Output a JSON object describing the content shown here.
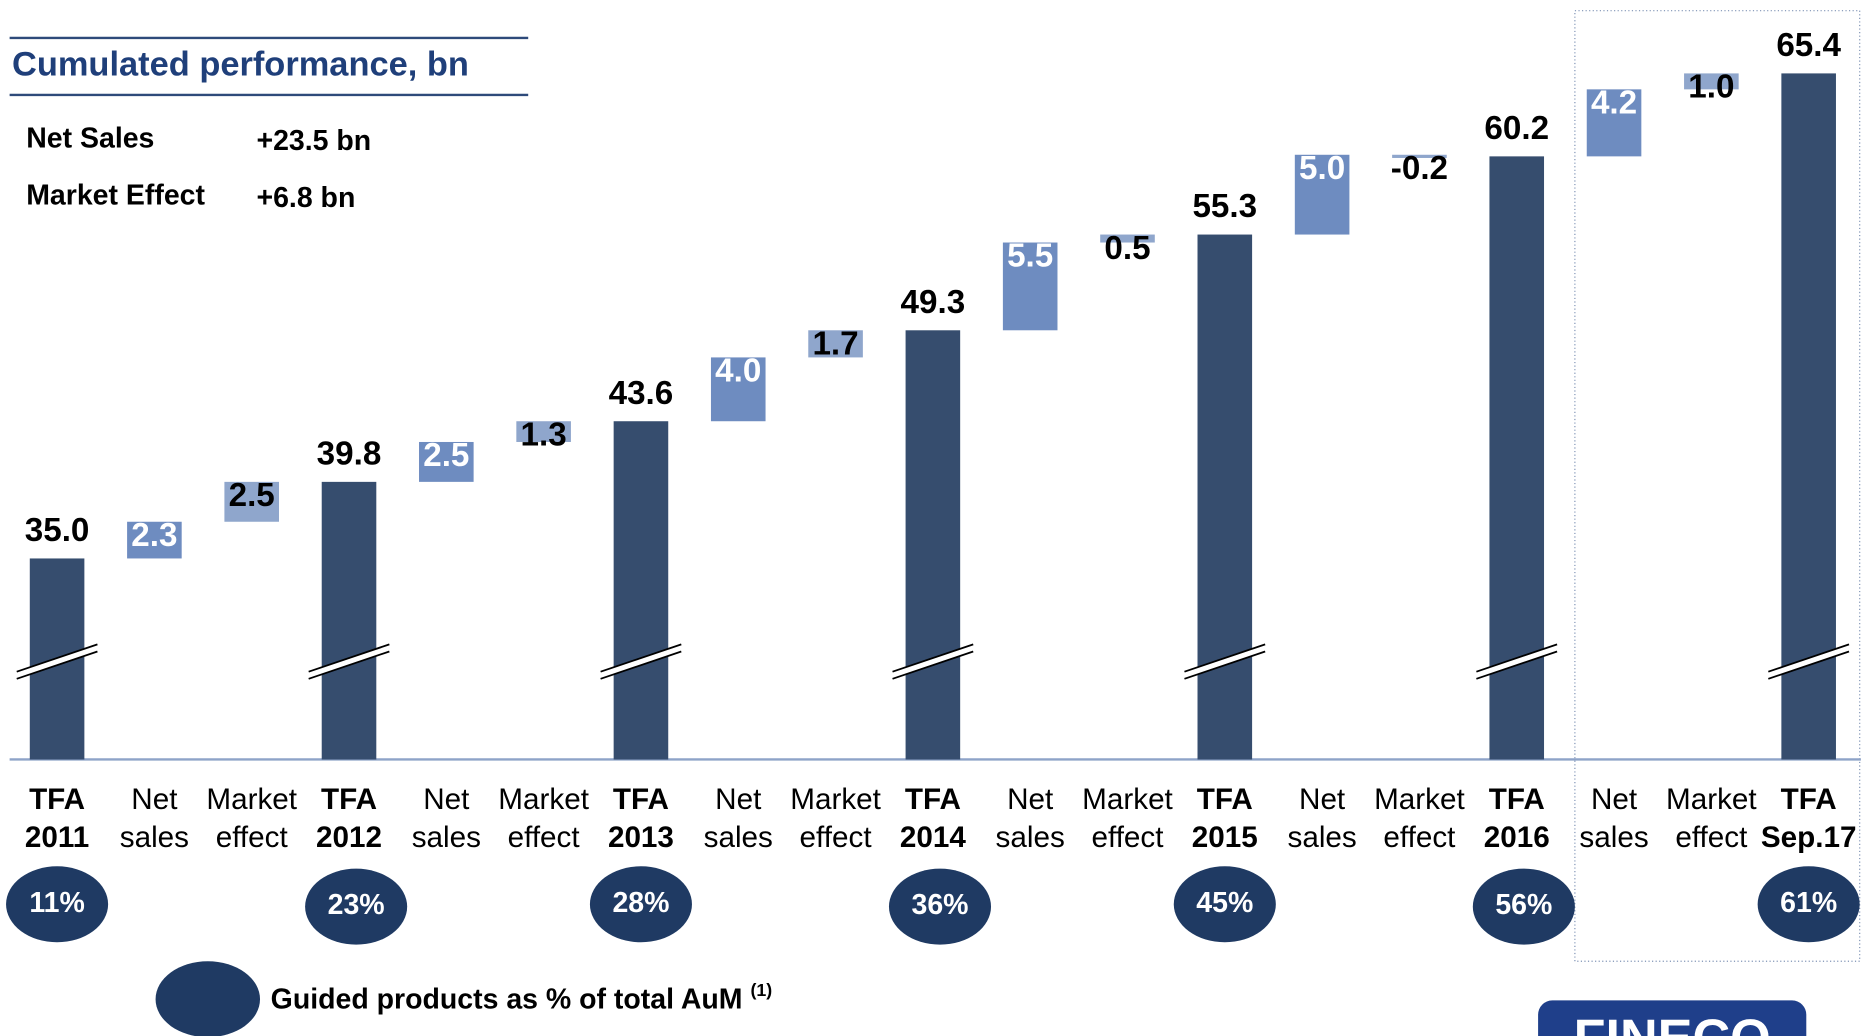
{
  "chart_data": {
    "type": "waterfall",
    "title": "Cumulated performance, bn",
    "summary": [
      {
        "label": "Net Sales",
        "value": "+23.5 bn"
      },
      {
        "label": "Market Effect",
        "value": "+6.8 bn"
      }
    ],
    "categories": [
      [
        "TFA",
        "2011"
      ],
      [
        "Net",
        "sales"
      ],
      [
        "Market",
        "effect"
      ],
      [
        "TFA",
        "2012"
      ],
      [
        "Net",
        "sales"
      ],
      [
        "Market",
        "effect"
      ],
      [
        "TFA",
        "2013"
      ],
      [
        "Net",
        "sales"
      ],
      [
        "Market",
        "effect"
      ],
      [
        "TFA",
        "2014"
      ],
      [
        "Net",
        "sales"
      ],
      [
        "Market",
        "effect"
      ],
      [
        "TFA",
        "2015"
      ],
      [
        "Net",
        "sales"
      ],
      [
        "Market",
        "effect"
      ],
      [
        "TFA",
        "2016"
      ],
      [
        "Net",
        "sales"
      ],
      [
        "Market",
        "effect"
      ],
      [
        "TFA",
        "Sep.17"
      ]
    ],
    "measure": [
      "absolute",
      "relative",
      "relative",
      "absolute",
      "relative",
      "relative",
      "absolute",
      "relative",
      "relative",
      "absolute",
      "relative",
      "relative",
      "absolute",
      "relative",
      "relative",
      "absolute",
      "relative",
      "relative",
      "absolute"
    ],
    "values": [
      35.0,
      2.3,
      2.5,
      39.8,
      2.5,
      1.3,
      43.6,
      4.0,
      1.7,
      49.3,
      5.5,
      0.5,
      55.3,
      5.0,
      -0.2,
      60.2,
      4.2,
      1.0,
      65.4
    ],
    "value_labels": [
      "35.0",
      "2.3",
      "2.5",
      "39.8",
      "2.5",
      "1.3",
      "43.6",
      "4.0",
      "1.7",
      "49.3",
      "5.5",
      "0.5",
      "55.3",
      "5.0",
      "-0.2",
      "60.2",
      "4.2",
      "1.0",
      "65.4"
    ],
    "colors": [
      "#364d6e",
      "#6e8cc0",
      "#8fa6cc",
      "#364d6e",
      "#6e8cc0",
      "#8fa6cc",
      "#364d6e",
      "#6e8cc0",
      "#8fa6cc",
      "#364d6e",
      "#6e8cc0",
      "#8fa6cc",
      "#364d6e",
      "#6e8cc0",
      "#8fa6cc",
      "#364d6e",
      "#6e8cc0",
      "#8fa6cc",
      "#364d6e"
    ],
    "label_colors": [
      "#000",
      "#fff",
      "#000",
      "#000",
      "#fff",
      "#000",
      "#000",
      "#fff",
      "#000",
      "#000",
      "#fff",
      "#000",
      "#000",
      "#fff",
      "#000",
      "#000",
      "#fff",
      "#000",
      "#000"
    ],
    "ylim": [
      22.4,
      70
    ],
    "guided": {
      "label": "Guided products as % of total AuM",
      "note": "(1)",
      "color": "#1f3a63",
      "values": [
        11,
        23,
        28,
        36,
        45,
        56,
        61
      ],
      "value_labels": [
        "11%",
        "23%",
        "28%",
        "36%",
        "45%",
        "56%",
        "61%"
      ]
    },
    "logo": "FINECO"
  }
}
